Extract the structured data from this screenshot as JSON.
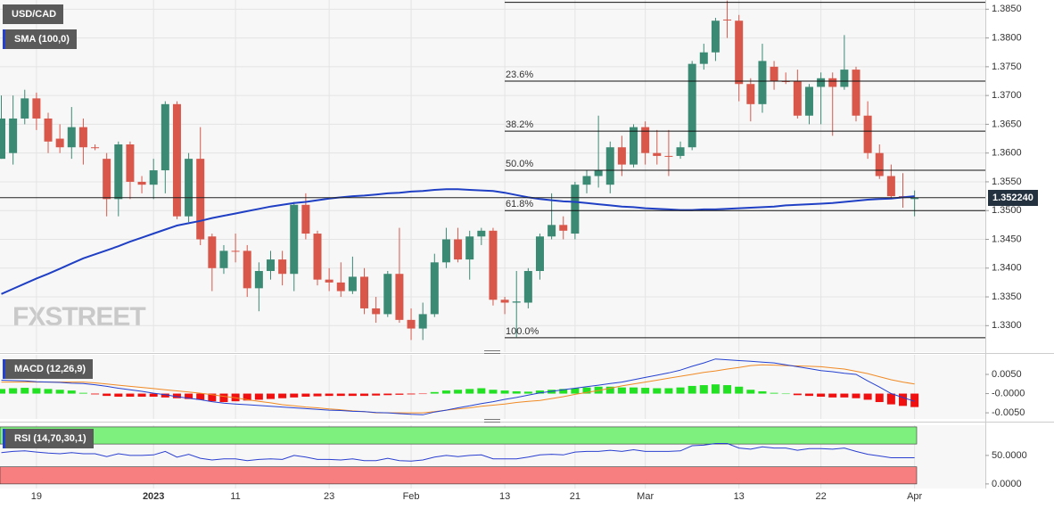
{
  "chart_data": [
    {
      "type": "candlestick",
      "title": "USD/CAD",
      "categories": [
        null,
        null,
        null,
        "19",
        null,
        null,
        null,
        null,
        null,
        null,
        null,
        null,
        null,
        "2023",
        null,
        null,
        null,
        null,
        null,
        null,
        "11",
        null,
        null,
        null,
        null,
        null,
        null,
        null,
        "23",
        null,
        null,
        null,
        null,
        null,
        null,
        "Feb",
        null,
        null,
        null,
        null,
        null,
        null,
        null,
        "13",
        null,
        null,
        null,
        null,
        null,
        "21",
        null,
        null,
        null,
        null,
        null,
        "Mar",
        null,
        null,
        null,
        null,
        null,
        null,
        null,
        "13",
        null,
        null,
        null,
        null,
        null,
        null,
        "22",
        null,
        null,
        null,
        null,
        null,
        null,
        null,
        "Apr"
      ],
      "series": [
        {
          "up_color": "#3b8a74",
          "down_color": "#d9574a",
          "open": [
            1.359,
            1.36,
            1.366,
            1.3695,
            1.366,
            1.3625,
            1.361,
            1.3645,
            1.361,
            1.359,
            1.352,
            1.3615,
            1.355,
            1.3545,
            1.357,
            1.3685,
            1.349,
            1.359,
            1.3455,
            1.34,
            1.343,
            1.343,
            1.3365,
            1.3395,
            1.3415,
            1.339,
            1.351,
            1.346,
            1.338,
            1.3375,
            1.336,
            1.3385,
            1.333,
            1.332,
            1.339,
            1.331,
            1.3295,
            1.332,
            1.341,
            1.345,
            1.3415,
            1.3455,
            1.3465,
            1.3345,
            1.334,
            1.334,
            1.3395,
            1.3455,
            1.3475,
            1.346,
            1.3545,
            1.356,
            1.3545,
            1.361,
            1.358,
            1.3645,
            1.36,
            1.3595,
            1.3595,
            1.361,
            1.3755,
            1.3775,
            1.3832,
            1.383,
            1.372,
            1.3685,
            1.375,
            1.3725,
            1.3725,
            1.3665,
            1.3715,
            1.373,
            1.3715,
            1.3745,
            1.3665,
            1.36,
            1.356,
            1.3525,
            1.352
          ],
          "high": [
            1.37,
            1.37,
            1.371,
            1.3705,
            1.367,
            1.365,
            1.368,
            1.366,
            1.3615,
            1.36,
            1.362,
            1.362,
            1.356,
            1.359,
            1.369,
            1.369,
            1.36,
            1.3645,
            1.346,
            1.344,
            1.346,
            1.344,
            1.341,
            1.343,
            1.343,
            1.3515,
            1.353,
            1.3465,
            1.34,
            1.341,
            1.342,
            1.34,
            1.335,
            1.3395,
            1.347,
            1.333,
            1.334,
            1.3425,
            1.347,
            1.347,
            1.3465,
            1.347,
            1.347,
            1.335,
            1.3395,
            1.34,
            1.346,
            1.353,
            1.349,
            1.355,
            1.357,
            1.3665,
            1.362,
            1.363,
            1.365,
            1.3655,
            1.364,
            1.364,
            1.362,
            1.376,
            1.379,
            1.3835,
            1.3865,
            1.384,
            1.373,
            1.379,
            1.376,
            1.374,
            1.3745,
            1.372,
            1.374,
            1.374,
            1.3805,
            1.375,
            1.369,
            1.3615,
            1.358,
            1.3565,
            1.3535
          ],
          "low": [
            1.359,
            1.358,
            1.365,
            1.364,
            1.36,
            1.36,
            1.359,
            1.358,
            1.3605,
            1.349,
            1.349,
            1.352,
            1.353,
            1.352,
            1.353,
            1.3485,
            1.348,
            1.344,
            1.336,
            1.339,
            1.341,
            1.335,
            1.3325,
            1.338,
            1.337,
            1.336,
            1.345,
            1.337,
            1.336,
            1.335,
            1.3355,
            1.332,
            1.3305,
            1.3315,
            1.3305,
            1.3275,
            1.3275,
            1.3315,
            1.34,
            1.341,
            1.338,
            1.344,
            1.3335,
            1.332,
            1.328,
            1.333,
            1.338,
            1.345,
            1.345,
            1.345,
            1.353,
            1.354,
            1.353,
            1.356,
            1.3575,
            1.358,
            1.358,
            1.356,
            1.359,
            1.3605,
            1.3745,
            1.376,
            1.38,
            1.369,
            1.3655,
            1.367,
            1.371,
            1.372,
            1.366,
            1.365,
            1.365,
            1.363,
            1.371,
            1.3655,
            1.359,
            1.3555,
            1.352,
            1.3505,
            1.349
          ],
          "close": [
            1.366,
            1.366,
            1.3695,
            1.366,
            1.362,
            1.361,
            1.3645,
            1.361,
            1.361,
            1.352,
            1.3615,
            1.355,
            1.3545,
            1.357,
            1.3685,
            1.349,
            1.359,
            1.345,
            1.34,
            1.343,
            1.343,
            1.3365,
            1.3395,
            1.3415,
            1.339,
            1.351,
            1.346,
            1.338,
            1.3375,
            1.336,
            1.3385,
            1.333,
            1.332,
            1.339,
            1.331,
            1.3295,
            1.332,
            1.341,
            1.345,
            1.3415,
            1.3455,
            1.3465,
            1.3345,
            1.334,
            1.3342,
            1.3395,
            1.3455,
            1.3475,
            1.3465,
            1.3545,
            1.356,
            1.357,
            1.361,
            1.358,
            1.3645,
            1.36,
            1.3595,
            1.3595,
            1.361,
            1.3755,
            1.3775,
            1.383,
            1.3832,
            1.372,
            1.3685,
            1.376,
            1.3725,
            1.3725,
            1.3665,
            1.3715,
            1.373,
            1.3715,
            1.3745,
            1.3665,
            1.36,
            1.356,
            1.3525,
            1.3522,
            1.3522
          ]
        },
        {
          "name": "SMA (100,0)",
          "color": "#1f3fc4",
          "values": [
            1.3355,
            1.3364,
            1.3373,
            1.3382,
            1.339,
            1.3399,
            1.3408,
            1.3417,
            1.3424,
            1.3431,
            1.3438,
            1.3446,
            1.3453,
            1.346,
            1.3467,
            1.3474,
            1.3478,
            1.3482,
            1.3487,
            1.3491,
            1.3495,
            1.3499,
            1.3503,
            1.3507,
            1.351,
            1.3513,
            1.3515,
            1.3518,
            1.3521,
            1.3523,
            1.3525,
            1.3526,
            1.3528,
            1.353,
            1.3531,
            1.3533,
            1.3534,
            1.3536,
            1.3537,
            1.3537,
            1.3536,
            1.3535,
            1.3534,
            1.3531,
            1.3527,
            1.3523,
            1.352,
            1.3518,
            1.3516,
            1.3515,
            1.3513,
            1.3511,
            1.3509,
            1.3507,
            1.3506,
            1.3504,
            1.3503,
            1.3502,
            1.3501,
            1.3501,
            1.3502,
            1.3502,
            1.3503,
            1.3504,
            1.3505,
            1.3506,
            1.3507,
            1.3509,
            1.351,
            1.3511,
            1.3512,
            1.3513,
            1.3515,
            1.3517,
            1.3519,
            1.352,
            1.3521,
            1.3523,
            1.3525
          ]
        }
      ],
      "ylim": [
        1.3254,
        1.3866
      ],
      "yticks": [
        {
          "value": 1.33,
          "label": "1.3300"
        },
        {
          "value": 1.335,
          "label": "1.3350"
        },
        {
          "value": 1.34,
          "label": "1.3400"
        },
        {
          "value": 1.345,
          "label": "1.3450"
        },
        {
          "value": 1.35,
          "label": "1.3500"
        },
        {
          "value": 1.355,
          "label": "1.3550"
        },
        {
          "value": 1.36,
          "label": "1.3600"
        },
        {
          "value": 1.365,
          "label": "1.3650"
        },
        {
          "value": 1.37,
          "label": "1.3700"
        },
        {
          "value": 1.375,
          "label": "1.3750"
        },
        {
          "value": 1.38,
          "label": "1.3800"
        },
        {
          "value": 1.385,
          "label": "1.3850"
        }
      ],
      "last_price": {
        "value": 1.35224,
        "label": "1.352240"
      },
      "fibonacci": [
        {
          "value": 1.3862
        },
        {
          "value": 1.3725,
          "label": "23.6%"
        },
        {
          "value": 1.3638,
          "label": "38.2%"
        },
        {
          "value": 1.357,
          "label": "50.0%"
        },
        {
          "value": 1.35,
          "label": "61.8%"
        },
        {
          "value": 1.3279,
          "label": "100.0%"
        }
      ],
      "watermark": "FXSTREET",
      "grid": true
    },
    {
      "type": "macd",
      "title": "MACD (12,26,9)",
      "macd": {
        "color": "#2340d0",
        "values": [
          0.0035,
          0.0034,
          0.0033,
          0.0031,
          0.003,
          0.0029,
          0.0027,
          0.0026,
          0.0023,
          0.0019,
          0.0014,
          0.001,
          0.0006,
          0.0001,
          -0.0003,
          -0.0008,
          -0.0012,
          -0.0016,
          -0.0021,
          -0.0025,
          -0.0027,
          -0.0029,
          -0.0031,
          -0.0033,
          -0.0035,
          -0.0037,
          -0.0039,
          -0.0041,
          -0.0043,
          -0.0044,
          -0.0046,
          -0.0047,
          -0.0049,
          -0.005,
          -0.0052,
          -0.0054,
          -0.0055,
          -0.0048,
          -0.0043,
          -0.0037,
          -0.0032,
          -0.0026,
          -0.0021,
          -0.0015,
          -0.001,
          -0.0004,
          0.0002,
          0.0006,
          0.001,
          0.0014,
          0.0018,
          0.0022,
          0.0026,
          0.003,
          0.0036,
          0.0042,
          0.0048,
          0.0054,
          0.0061,
          0.0071,
          0.008,
          0.009,
          0.0088,
          0.0086,
          0.0084,
          0.0082,
          0.008,
          0.0075,
          0.007,
          0.0065,
          0.006,
          0.0057,
          0.0053,
          0.005,
          0.0033,
          0.0017,
          0.0,
          -0.001,
          -0.002
        ]
      },
      "signal": {
        "color": "#f08a24",
        "values": [
          0.003,
          0.003,
          0.003,
          0.003,
          0.003,
          0.003,
          0.003,
          0.003,
          0.0028,
          0.0025,
          0.0022,
          0.0019,
          0.0016,
          0.0013,
          0.001,
          0.0007,
          0.0004,
          0.0001,
          -0.0003,
          -0.0007,
          -0.0011,
          -0.0016,
          -0.002,
          -0.0024,
          -0.0029,
          -0.0032,
          -0.0035,
          -0.0037,
          -0.004,
          -0.0042,
          -0.0045,
          -0.0047,
          -0.005,
          -0.005,
          -0.005,
          -0.005,
          -0.005,
          -0.0047,
          -0.0043,
          -0.004,
          -0.0037,
          -0.0033,
          -0.003,
          -0.0027,
          -0.0023,
          -0.002,
          -0.0018,
          -0.0013,
          -0.0008,
          -0.0002,
          0.0003,
          0.0008,
          0.0014,
          0.002,
          0.0025,
          0.003,
          0.0035,
          0.004,
          0.0045,
          0.005,
          0.0055,
          0.0059,
          0.0064,
          0.0068,
          0.0073,
          0.0075,
          0.0074,
          0.0073,
          0.0072,
          0.0071,
          0.007,
          0.0067,
          0.0064,
          0.0058,
          0.0052,
          0.0044,
          0.0036,
          0.003,
          0.0025
        ]
      },
      "histogram": {
        "up_color": "#22e022",
        "down_color": "#f01010",
        "values": [
          0.0012,
          0.0014,
          0.0015,
          0.0014,
          0.0012,
          0.001,
          0.0008,
          0.0002,
          -0.0002,
          -0.0006,
          -0.0008,
          -0.0008,
          -0.0008,
          -0.0008,
          -0.001,
          -0.0012,
          -0.0014,
          -0.0016,
          -0.002,
          -0.0022,
          -0.002,
          -0.0018,
          -0.0016,
          -0.0014,
          -0.0012,
          -0.001,
          -0.0008,
          -0.0007,
          -0.0006,
          -0.0006,
          -0.0006,
          -0.0006,
          -0.0005,
          -0.0004,
          -0.0003,
          -0.0002,
          -0.0001,
          0.0004,
          0.0008,
          0.001,
          0.0012,
          0.0014,
          0.001,
          0.0008,
          0.0006,
          0.0005,
          0.0008,
          0.001,
          0.0012,
          0.0014,
          0.0016,
          0.0018,
          0.0018,
          0.0016,
          0.0016,
          0.0015,
          0.0014,
          0.0014,
          0.0016,
          0.002,
          0.0022,
          0.0024,
          0.0022,
          0.0018,
          0.001,
          0.0006,
          0.0002,
          0.0,
          -0.0004,
          -0.0006,
          -0.0008,
          -0.001,
          -0.001,
          -0.0012,
          -0.0016,
          -0.0022,
          -0.0028,
          -0.0032,
          -0.0035
        ]
      },
      "ylim": [
        -0.0066,
        0.0101
      ],
      "yticks": [
        {
          "value": 0.005,
          "label": "0.0050"
        },
        {
          "value": 0,
          "label": "-0.0000"
        },
        {
          "value": -0.005,
          "label": "-0.0050"
        }
      ]
    },
    {
      "type": "line",
      "title": "RSI (14,70,30,1)",
      "color": "#2a3fd0",
      "values": [
        55,
        57,
        58,
        56,
        54,
        53,
        55,
        53,
        53,
        48,
        53,
        50,
        50,
        51,
        57,
        47,
        52,
        45,
        42,
        44,
        44,
        41,
        43,
        44,
        43,
        50,
        47,
        43,
        43,
        42,
        44,
        41,
        41,
        45,
        41,
        40,
        42,
        47,
        50,
        48,
        50,
        51,
        44,
        44,
        44,
        47,
        51,
        52,
        51,
        56,
        57,
        57,
        59,
        57,
        60,
        57,
        57,
        57,
        58,
        67,
        68,
        71,
        71,
        63,
        61,
        65,
        63,
        63,
        59,
        62,
        62,
        61,
        63,
        57,
        52,
        49,
        46,
        46,
        46
      ],
      "bands": [
        {
          "from": 70,
          "to": 100,
          "color": "#7ef07e"
        },
        {
          "from": 0,
          "to": 30,
          "color": "#f77f7f"
        }
      ],
      "ylim": [
        -8,
        103
      ],
      "yticks": [
        {
          "value": 50,
          "label": "50.0000"
        },
        {
          "value": 0,
          "label": "0.0000"
        }
      ]
    }
  ]
}
